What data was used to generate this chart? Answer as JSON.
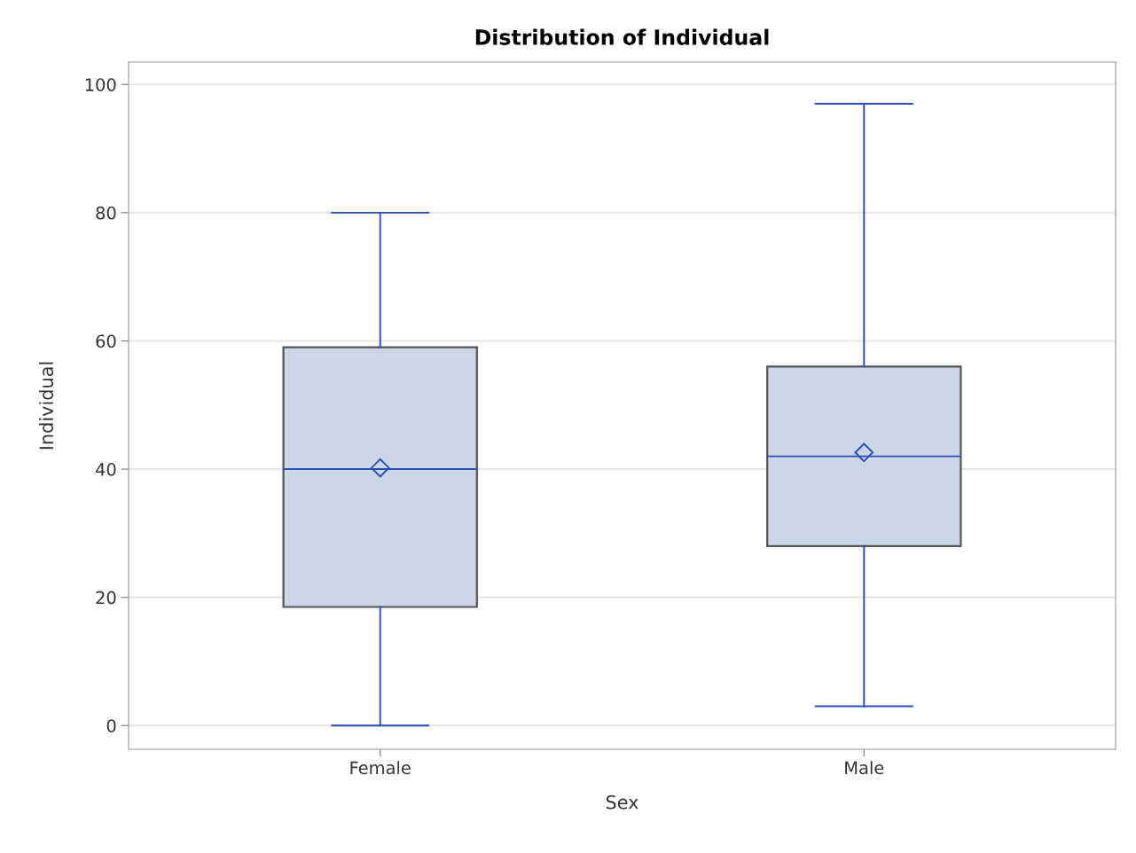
{
  "chart_data": {
    "type": "box",
    "title": "Distribution of Individual",
    "xlabel": "Sex",
    "ylabel": "Individual",
    "categories": [
      "Female",
      "Male"
    ],
    "boxes": [
      {
        "low": 0,
        "q1": 18.5,
        "median": 40,
        "q3": 59,
        "high": 80,
        "mean": 40.2
      },
      {
        "low": 3,
        "q1": 28,
        "median": 42,
        "q3": 56,
        "high": 97,
        "mean": 42.6
      }
    ],
    "color": "#cbd6e6",
    "ylim": [
      -3.7,
      103.5
    ],
    "yticks": [
      0,
      20,
      40,
      60,
      80,
      100
    ],
    "grid": "y",
    "marker": "diamond"
  }
}
